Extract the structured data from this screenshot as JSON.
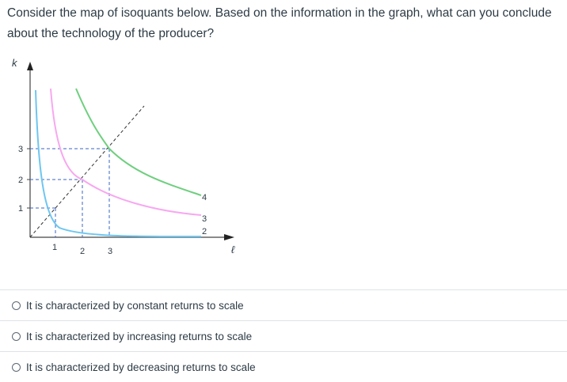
{
  "question": {
    "text": "Consider the map of isoquants below. Based on the information in the graph, what can you conclude about the technology of the producer?"
  },
  "graph": {
    "y_axis_label": "k",
    "x_axis_label": "ℓ",
    "y_ticks": [
      "3",
      "2",
      "1"
    ],
    "x_ticks": [
      "1",
      "2",
      "3"
    ],
    "curve_labels": [
      "4",
      "3",
      "2"
    ],
    "colors": {
      "curve_low": "#6ec6f0",
      "curve_mid": "#f7a8f0",
      "curve_high": "#6fcf7f",
      "ray": "#333333",
      "guide": "#3a66c4"
    }
  },
  "answers": [
    {
      "label": "It is characterized by constant returns to scale"
    },
    {
      "label": "It is characterized by increasing returns to scale"
    },
    {
      "label": "It is characterized by decreasing returns to scale"
    }
  ]
}
